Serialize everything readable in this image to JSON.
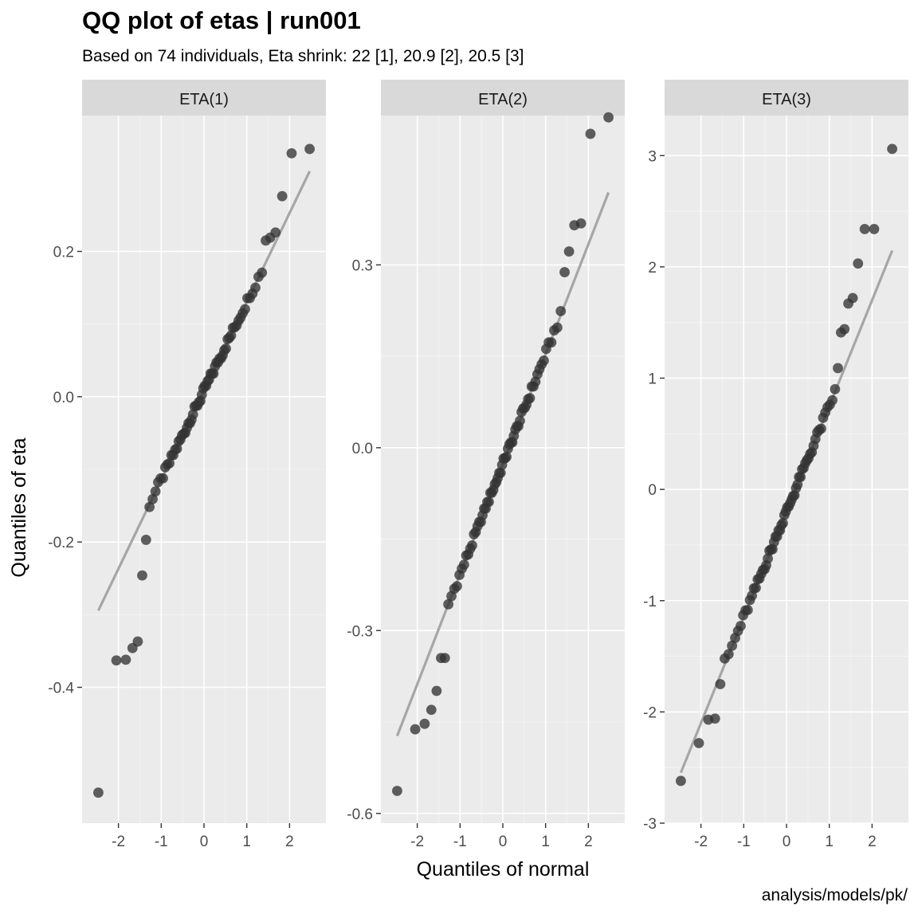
{
  "chart_data": {
    "type": "scatter",
    "title": "QQ plot of etas | run001",
    "subtitle": "Based on 74 individuals, Eta shrink: 22 [1], 20.9 [2], 20.5 [3]",
    "xlabel": "Quantiles of normal",
    "ylabel": "Quantiles of eta",
    "caption": "analysis/models/pk/",
    "grid": true,
    "x_ticks": [
      -2,
      -1,
      0,
      1,
      2
    ],
    "x_tick_labels": [
      "-2",
      "-1",
      "0",
      "1",
      "2"
    ],
    "xlim": [
      -2.85,
      2.85
    ],
    "n": 74,
    "colors": {
      "panel_bg": "#ebebeb",
      "strip_bg": "#d9d9d9",
      "grid_major": "#ffffff",
      "grid_minor": "#f5f5f5",
      "point": "#333333",
      "qq_line": "#a6a6a6",
      "tick": "#333333"
    },
    "panels": [
      {
        "strip": "ETA(1)",
        "ylim": [
          -0.587,
          0.387
        ],
        "y_ticks": [
          -0.4,
          -0.2,
          0.0,
          0.2
        ],
        "y_tick_labels": [
          "-0.4",
          "-0.2",
          "0.0",
          "0.2"
        ],
        "qq_line": {
          "intercept": 0.008,
          "slope": 0.1224
        },
        "outliers": [
          {
            "q": -2.49,
            "v": -0.545
          },
          {
            "q": -2.06,
            "v": -0.363
          },
          {
            "q": -1.85,
            "v": -0.362
          },
          {
            "q": -1.68,
            "v": -0.346
          },
          {
            "q": -1.56,
            "v": -0.337
          },
          {
            "q": -1.44,
            "v": -0.246
          },
          {
            "q": -1.35,
            "v": -0.197
          },
          {
            "q": 1.44,
            "v": 0.215
          },
          {
            "q": 1.56,
            "v": 0.219
          },
          {
            "q": 1.68,
            "v": 0.226
          },
          {
            "q": 1.85,
            "v": 0.276
          },
          {
            "q": 2.06,
            "v": 0.335
          },
          {
            "q": 2.49,
            "v": 0.341
          }
        ]
      },
      {
        "strip": "ETA(2)",
        "ylim": [
          -0.616,
          0.545
        ],
        "y_ticks": [
          -0.6,
          -0.3,
          0.0,
          0.3
        ],
        "y_tick_labels": [
          "-0.6",
          "-0.3",
          "0.0",
          "0.3"
        ],
        "qq_line": {
          "intercept": -0.027,
          "slope": 0.1805
        },
        "outliers": [
          {
            "q": -2.49,
            "v": -0.563
          },
          {
            "q": -2.06,
            "v": -0.462
          },
          {
            "q": -1.85,
            "v": -0.453
          },
          {
            "q": -1.68,
            "v": -0.43
          },
          {
            "q": -1.56,
            "v": -0.399
          },
          {
            "q": -1.44,
            "v": -0.345
          },
          {
            "q": -1.35,
            "v": -0.345
          },
          {
            "q": 1.44,
            "v": 0.288
          },
          {
            "q": 1.56,
            "v": 0.322
          },
          {
            "q": 1.68,
            "v": 0.365
          },
          {
            "q": 1.85,
            "v": 0.368
          },
          {
            "q": 2.06,
            "v": 0.515
          },
          {
            "q": 2.49,
            "v": 0.542
          }
        ]
      },
      {
        "strip": "ETA(3)",
        "ylim": [
          -3.0,
          3.36
        ],
        "y_ticks": [
          -3,
          -2,
          -1,
          0,
          1,
          2,
          3
        ],
        "y_tick_labels": [
          "-3",
          "-2",
          "-1",
          "0",
          "1",
          "2",
          "3"
        ],
        "qq_line": {
          "intercept": -0.2,
          "slope": 0.95
        },
        "outliers": [
          {
            "q": -2.49,
            "v": -2.62
          },
          {
            "q": -2.06,
            "v": -2.28
          },
          {
            "q": -1.85,
            "v": -2.07
          },
          {
            "q": -1.68,
            "v": -2.06
          },
          {
            "q": -1.56,
            "v": -1.75
          },
          {
            "q": -1.44,
            "v": -1.52
          },
          {
            "q": 1.2,
            "v": 1.09
          },
          {
            "q": 1.28,
            "v": 1.41
          },
          {
            "q": 1.35,
            "v": 1.44
          },
          {
            "q": 1.44,
            "v": 1.67
          },
          {
            "q": 1.56,
            "v": 1.72
          },
          {
            "q": 1.68,
            "v": 2.03
          },
          {
            "q": 1.85,
            "v": 2.34
          },
          {
            "q": 2.06,
            "v": 2.34
          },
          {
            "q": 2.49,
            "v": 3.06
          }
        ]
      }
    ]
  }
}
